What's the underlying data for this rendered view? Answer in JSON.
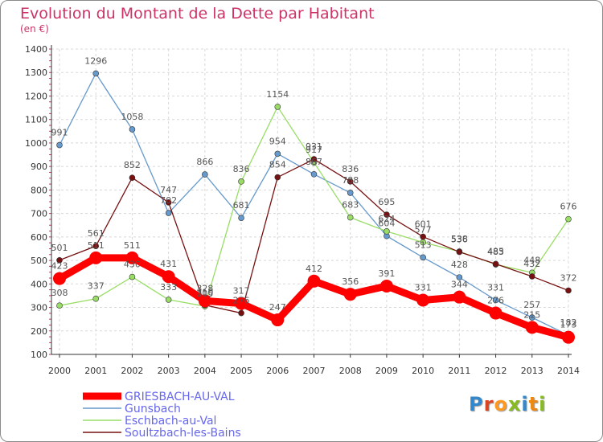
{
  "header": {
    "title": "Evolution du Montant de la Dette par Habitant",
    "subtitle": "(en €)"
  },
  "logo": {
    "letters": [
      "P",
      "r",
      "o",
      "x",
      "i",
      "t",
      "i"
    ],
    "colors": [
      "#3388cc",
      "#dd4422",
      "#ff9922",
      "#88bb22",
      "#3388cc",
      "#ee8811",
      "#88bb22"
    ]
  },
  "chart_data": {
    "type": "line",
    "title": "Evolution du Montant de la Dette par Habitant",
    "subtitle": "(en €)",
    "x": [
      2000,
      2001,
      2002,
      2003,
      2004,
      2005,
      2006,
      2007,
      2008,
      2009,
      2010,
      2011,
      2012,
      2013,
      2014
    ],
    "ylim": [
      100,
      1400
    ],
    "yticks": [
      100,
      200,
      300,
      400,
      500,
      600,
      700,
      800,
      900,
      1000,
      1100,
      1200,
      1300,
      1400
    ],
    "grid": true,
    "legend_position": "bottom-left",
    "series": [
      {
        "name": "GRIESBACH-AU-VAL",
        "color": "#ff0000",
        "values": [
          423,
          511,
          511,
          431,
          328,
          317,
          247,
          412,
          356,
          391,
          331,
          344,
          276,
          215,
          173
        ]
      },
      {
        "name": "Gunsbach",
        "color": "#6699cc",
        "values": [
          991,
          1296,
          1058,
          702,
          866,
          681,
          954,
          867,
          788,
          604,
          513,
          428,
          331,
          257,
          182
        ]
      },
      {
        "name": "Eschbach-au-Val",
        "color": "#99dd66",
        "values": [
          308,
          337,
          430,
          333,
          305,
          836,
          1154,
          917,
          683,
          624,
          577,
          538,
          483,
          448,
          676
        ]
      },
      {
        "name": "Soultzbach-les-Bains",
        "color": "#771111",
        "values": [
          501,
          561,
          852,
          747,
          310,
          276,
          854,
          931,
          836,
          695,
          601,
          536,
          485,
          432,
          372
        ]
      }
    ]
  }
}
